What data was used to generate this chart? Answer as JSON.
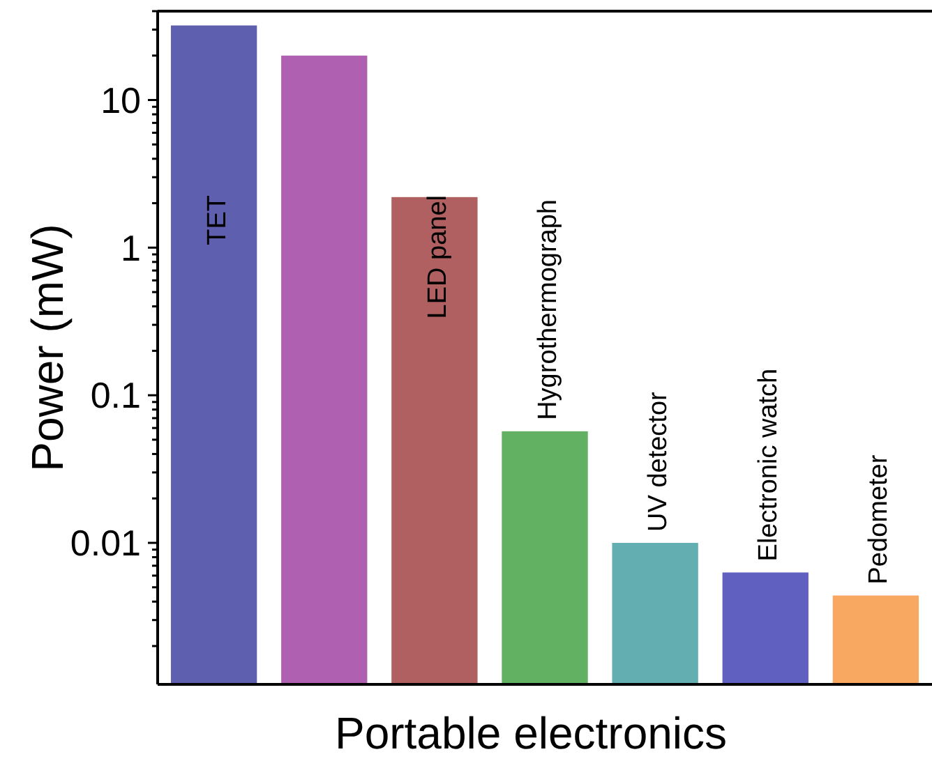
{
  "chart_data": {
    "type": "bar",
    "xlabel": "Portable electronics",
    "ylabel": "Power (mW)",
    "categories": [
      "TET",
      null,
      "LED panel",
      "Hygrothermograph",
      "UV detector",
      "Electronic watch",
      "Pedometer"
    ],
    "values": [
      32,
      20,
      2.2,
      0.057,
      0.01,
      0.0063,
      0.0044
    ],
    "colors": [
      "#5f5fb0",
      "#b060b0",
      "#b06060",
      "#62b062",
      "#62aeb0",
      "#6060c0",
      "#f8a860"
    ],
    "log": true,
    "ylim": [
      0.0011,
      40
    ],
    "yticks": [
      {
        "value": 0.002,
        "label": null
      },
      {
        "value": 0.003,
        "label": null
      },
      {
        "value": 0.004,
        "label": null
      },
      {
        "value": 0.005,
        "label": null
      },
      {
        "value": 0.006,
        "label": null
      },
      {
        "value": 0.007,
        "label": null
      },
      {
        "value": 0.008,
        "label": null
      },
      {
        "value": 0.009,
        "label": null
      },
      0.01,
      {
        "value": 0.02,
        "label": null
      },
      {
        "value": 0.03,
        "label": null
      },
      {
        "value": 0.04,
        "label": null
      },
      {
        "value": 0.05,
        "label": null
      },
      {
        "value": 0.06,
        "label": null
      },
      {
        "value": 0.07,
        "label": null
      },
      {
        "value": 0.08,
        "label": null
      },
      {
        "value": 0.09,
        "label": null
      },
      0.1,
      {
        "value": 0.2,
        "label": null
      },
      {
        "value": 0.3,
        "label": null
      },
      {
        "value": 0.4,
        "label": null
      },
      {
        "value": 0.5,
        "label": null
      },
      {
        "value": 0.6,
        "label": null
      },
      {
        "value": 0.7,
        "label": null
      },
      {
        "value": 0.8,
        "label": null
      },
      {
        "value": 0.9,
        "label": null
      },
      1,
      {
        "value": 2,
        "label": null
      },
      {
        "value": 3,
        "label": null
      },
      {
        "value": 4,
        "label": null
      },
      {
        "value": 5,
        "label": null
      },
      {
        "value": 6,
        "label": null
      },
      {
        "value": 7,
        "label": null
      },
      {
        "value": 8,
        "label": null
      },
      {
        "value": 9,
        "label": null
      },
      10,
      {
        "value": 20,
        "label": null
      },
      {
        "value": 30,
        "label": null
      },
      {
        "value": 40,
        "label": null
      }
    ]
  }
}
